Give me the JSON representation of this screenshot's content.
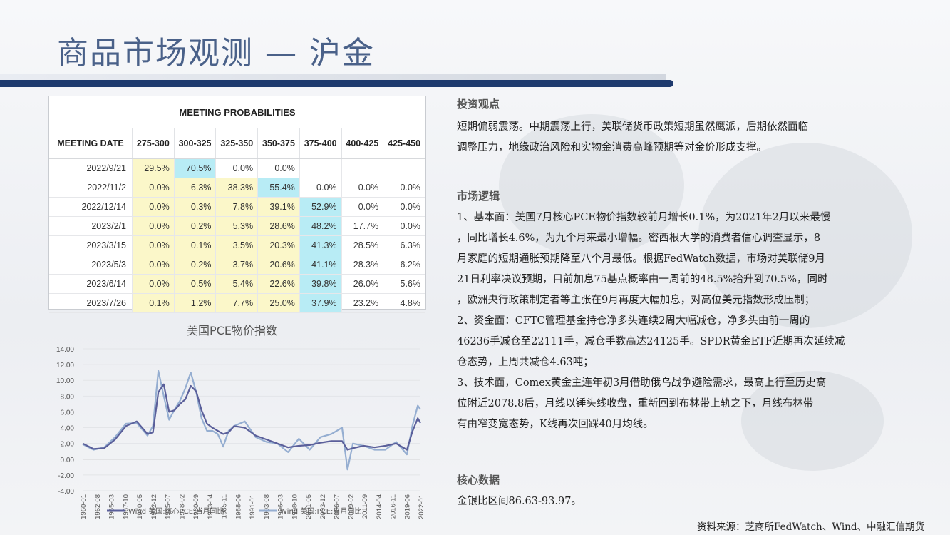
{
  "page_title": "商品市场观测 — 沪金",
  "table": {
    "heading": "MEETING PROBABILITIES",
    "columns": [
      "MEETING DATE",
      "275-300",
      "300-325",
      "325-350",
      "350-375",
      "375-400",
      "400-425",
      "425-450"
    ],
    "rows": [
      {
        "date": "2022/9/21",
        "cells": [
          "29.5%",
          "70.5%",
          "0.0%",
          "0.0%",
          "",
          "",
          ""
        ]
      },
      {
        "date": "2022/11/2",
        "cells": [
          "0.0%",
          "6.3%",
          "38.3%",
          "55.4%",
          "0.0%",
          "0.0%",
          "0.0%"
        ]
      },
      {
        "date": "2022/12/14",
        "cells": [
          "0.0%",
          "0.3%",
          "7.8%",
          "39.1%",
          "52.9%",
          "0.0%",
          "0.0%"
        ]
      },
      {
        "date": "2023/2/1",
        "cells": [
          "0.0%",
          "0.2%",
          "5.3%",
          "28.6%",
          "48.2%",
          "17.7%",
          "0.0%"
        ]
      },
      {
        "date": "2023/3/15",
        "cells": [
          "0.0%",
          "0.1%",
          "3.5%",
          "20.3%",
          "41.3%",
          "28.5%",
          "6.3%"
        ]
      },
      {
        "date": "2023/5/3",
        "cells": [
          "0.0%",
          "0.2%",
          "3.7%",
          "20.6%",
          "41.1%",
          "28.3%",
          "6.2%"
        ]
      },
      {
        "date": "2023/6/14",
        "cells": [
          "0.0%",
          "0.5%",
          "5.4%",
          "22.6%",
          "39.8%",
          "26.0%",
          "5.6%"
        ]
      },
      {
        "date": "2023/7/26",
        "cells": [
          "0.1%",
          "1.2%",
          "7.7%",
          "25.0%",
          "37.9%",
          "23.2%",
          "4.8%"
        ]
      }
    ],
    "highlight": [
      [
        "y",
        "b",
        "",
        "",
        "",
        "",
        ""
      ],
      [
        "y",
        "y",
        "y",
        "b",
        "",
        "",
        ""
      ],
      [
        "y",
        "y",
        "y",
        "y",
        "b",
        "",
        ""
      ],
      [
        "y",
        "y",
        "y",
        "y",
        "b",
        "",
        ""
      ],
      [
        "y",
        "y",
        "y",
        "y",
        "b",
        "",
        ""
      ],
      [
        "y",
        "y",
        "y",
        "y",
        "b",
        "",
        ""
      ],
      [
        "y",
        "y",
        "y",
        "y",
        "b",
        "",
        ""
      ],
      [
        "y",
        "y",
        "y",
        "y",
        "b",
        "",
        ""
      ]
    ],
    "colors": {
      "yellow": "#fbf7c9",
      "blue": "#b8ecf5"
    }
  },
  "chart_data": {
    "type": "line",
    "title": "美国PCE物价指数",
    "ylim": [
      -4,
      14
    ],
    "yticks": [
      "14.00",
      "12.00",
      "10.00",
      "8.00",
      "6.00",
      "4.00",
      "2.00",
      "0.00",
      "-2.00",
      "-4.00"
    ],
    "x_tick_labels": [
      "1960-01",
      "1962-08",
      "1965-03",
      "1967-10",
      "1970-05",
      "1972-12",
      "1975-07",
      "1978-02",
      "1980-09",
      "1983-04",
      "1985-11",
      "1988-06",
      "1991-01",
      "1993-08",
      "1996-03",
      "1998-10",
      "2001-05",
      "2003-12",
      "2006-07",
      "2009-02",
      "2011-09",
      "2014-04",
      "2016-11",
      "2019-06",
      "2022-01"
    ],
    "x": [
      1960,
      1962,
      1964,
      1966,
      1968,
      1970,
      1972,
      1973,
      1974,
      1975,
      1976,
      1977,
      1978,
      1979,
      1980,
      1981,
      1982,
      1983,
      1984,
      1985,
      1986,
      1987,
      1988,
      1990,
      1992,
      1994,
      1996,
      1998,
      2000,
      2002,
      2004,
      2006,
      2008,
      2009,
      2010,
      2012,
      2014,
      2016,
      2018,
      2020,
      2021,
      2022,
      2022.5
    ],
    "series": [
      {
        "name": "Wind 美国:核心PCE:当月同比",
        "color": "#5a5f9a",
        "values": [
          2.0,
          1.3,
          1.4,
          2.5,
          4.2,
          4.8,
          3.2,
          3.4,
          8.5,
          9.5,
          6.0,
          6.2,
          7.0,
          7.6,
          9.3,
          8.6,
          6.2,
          4.5,
          4.0,
          3.6,
          3.2,
          3.4,
          4.2,
          4.0,
          3.0,
          2.5,
          2.0,
          1.5,
          1.7,
          1.8,
          2.1,
          2.3,
          2.3,
          1.2,
          1.4,
          1.7,
          1.5,
          1.7,
          2.0,
          1.2,
          3.5,
          5.2,
          4.6
        ]
      },
      {
        "name": "Wind 美国:PCE:当月同比",
        "color": "#95aed1",
        "values": [
          1.9,
          1.2,
          1.5,
          2.8,
          4.5,
          4.6,
          3.0,
          4.2,
          11.2,
          8.0,
          5.0,
          6.3,
          7.4,
          9.0,
          11.0,
          8.5,
          5.2,
          3.6,
          3.6,
          3.2,
          1.6,
          3.6,
          4.2,
          4.8,
          2.8,
          2.2,
          2.0,
          0.9,
          2.6,
          1.2,
          2.8,
          3.2,
          4.0,
          -1.3,
          2.0,
          1.7,
          1.2,
          1.2,
          2.2,
          0.6,
          4.2,
          6.8,
          6.3
        ]
      }
    ]
  },
  "right": {
    "s1_title": "投资观点",
    "s1_lines": [
      "短期偏弱震荡。中期震荡上行，美联储货币政策短期虽然鹰派，后期依然面临",
      "调整压力，地缘政治风险和实物金消费高峰预期等对金价形成支撑。"
    ],
    "s2_title": "市场逻辑",
    "s2_lines": [
      "1、基本面：美国7月核心PCE物价指数较前月增长0.1%，为2021年2月以来最慢",
      "，同比增长4.6%，为九个月来最小增幅。密西根大学的消费者信心调查显示，8",
      "月家庭的短期通胀预期降至八个月最低。根据FedWatch数据，市场对美联储9月",
      "21日利率决议预期，目前加息75基点概率由一周前的48.5%抬升到70.5%，同时",
      "，欧洲央行政策制定者等主张在9月再度大幅加息，对高位美元指数形成压制；",
      "2、资金面：CFTC管理基金持仓净多头连续2周大幅减仓，净多头由前一周的",
      "46236手减仓至22111手，减仓手数高达24125手。SPDR黄金ETF近期再次延续减",
      "仓态势，上周共减仓4.63吨；",
      "3、技术面，Comex黄金主连年初3月借助俄乌战争避险需求，最高上行至历史高",
      "位附近2078.8后，月线以锤头线收盘，重新回到布林带上轨之下，月线布林带",
      "有由窄变宽态势，K线再次回踩40月均线。"
    ],
    "s3_title": "核心数据",
    "s3_lines": [
      "金银比区间86.63-93.97。"
    ]
  },
  "source": "资料来源：芝商所FedWatch、Wind、中融汇信期货"
}
